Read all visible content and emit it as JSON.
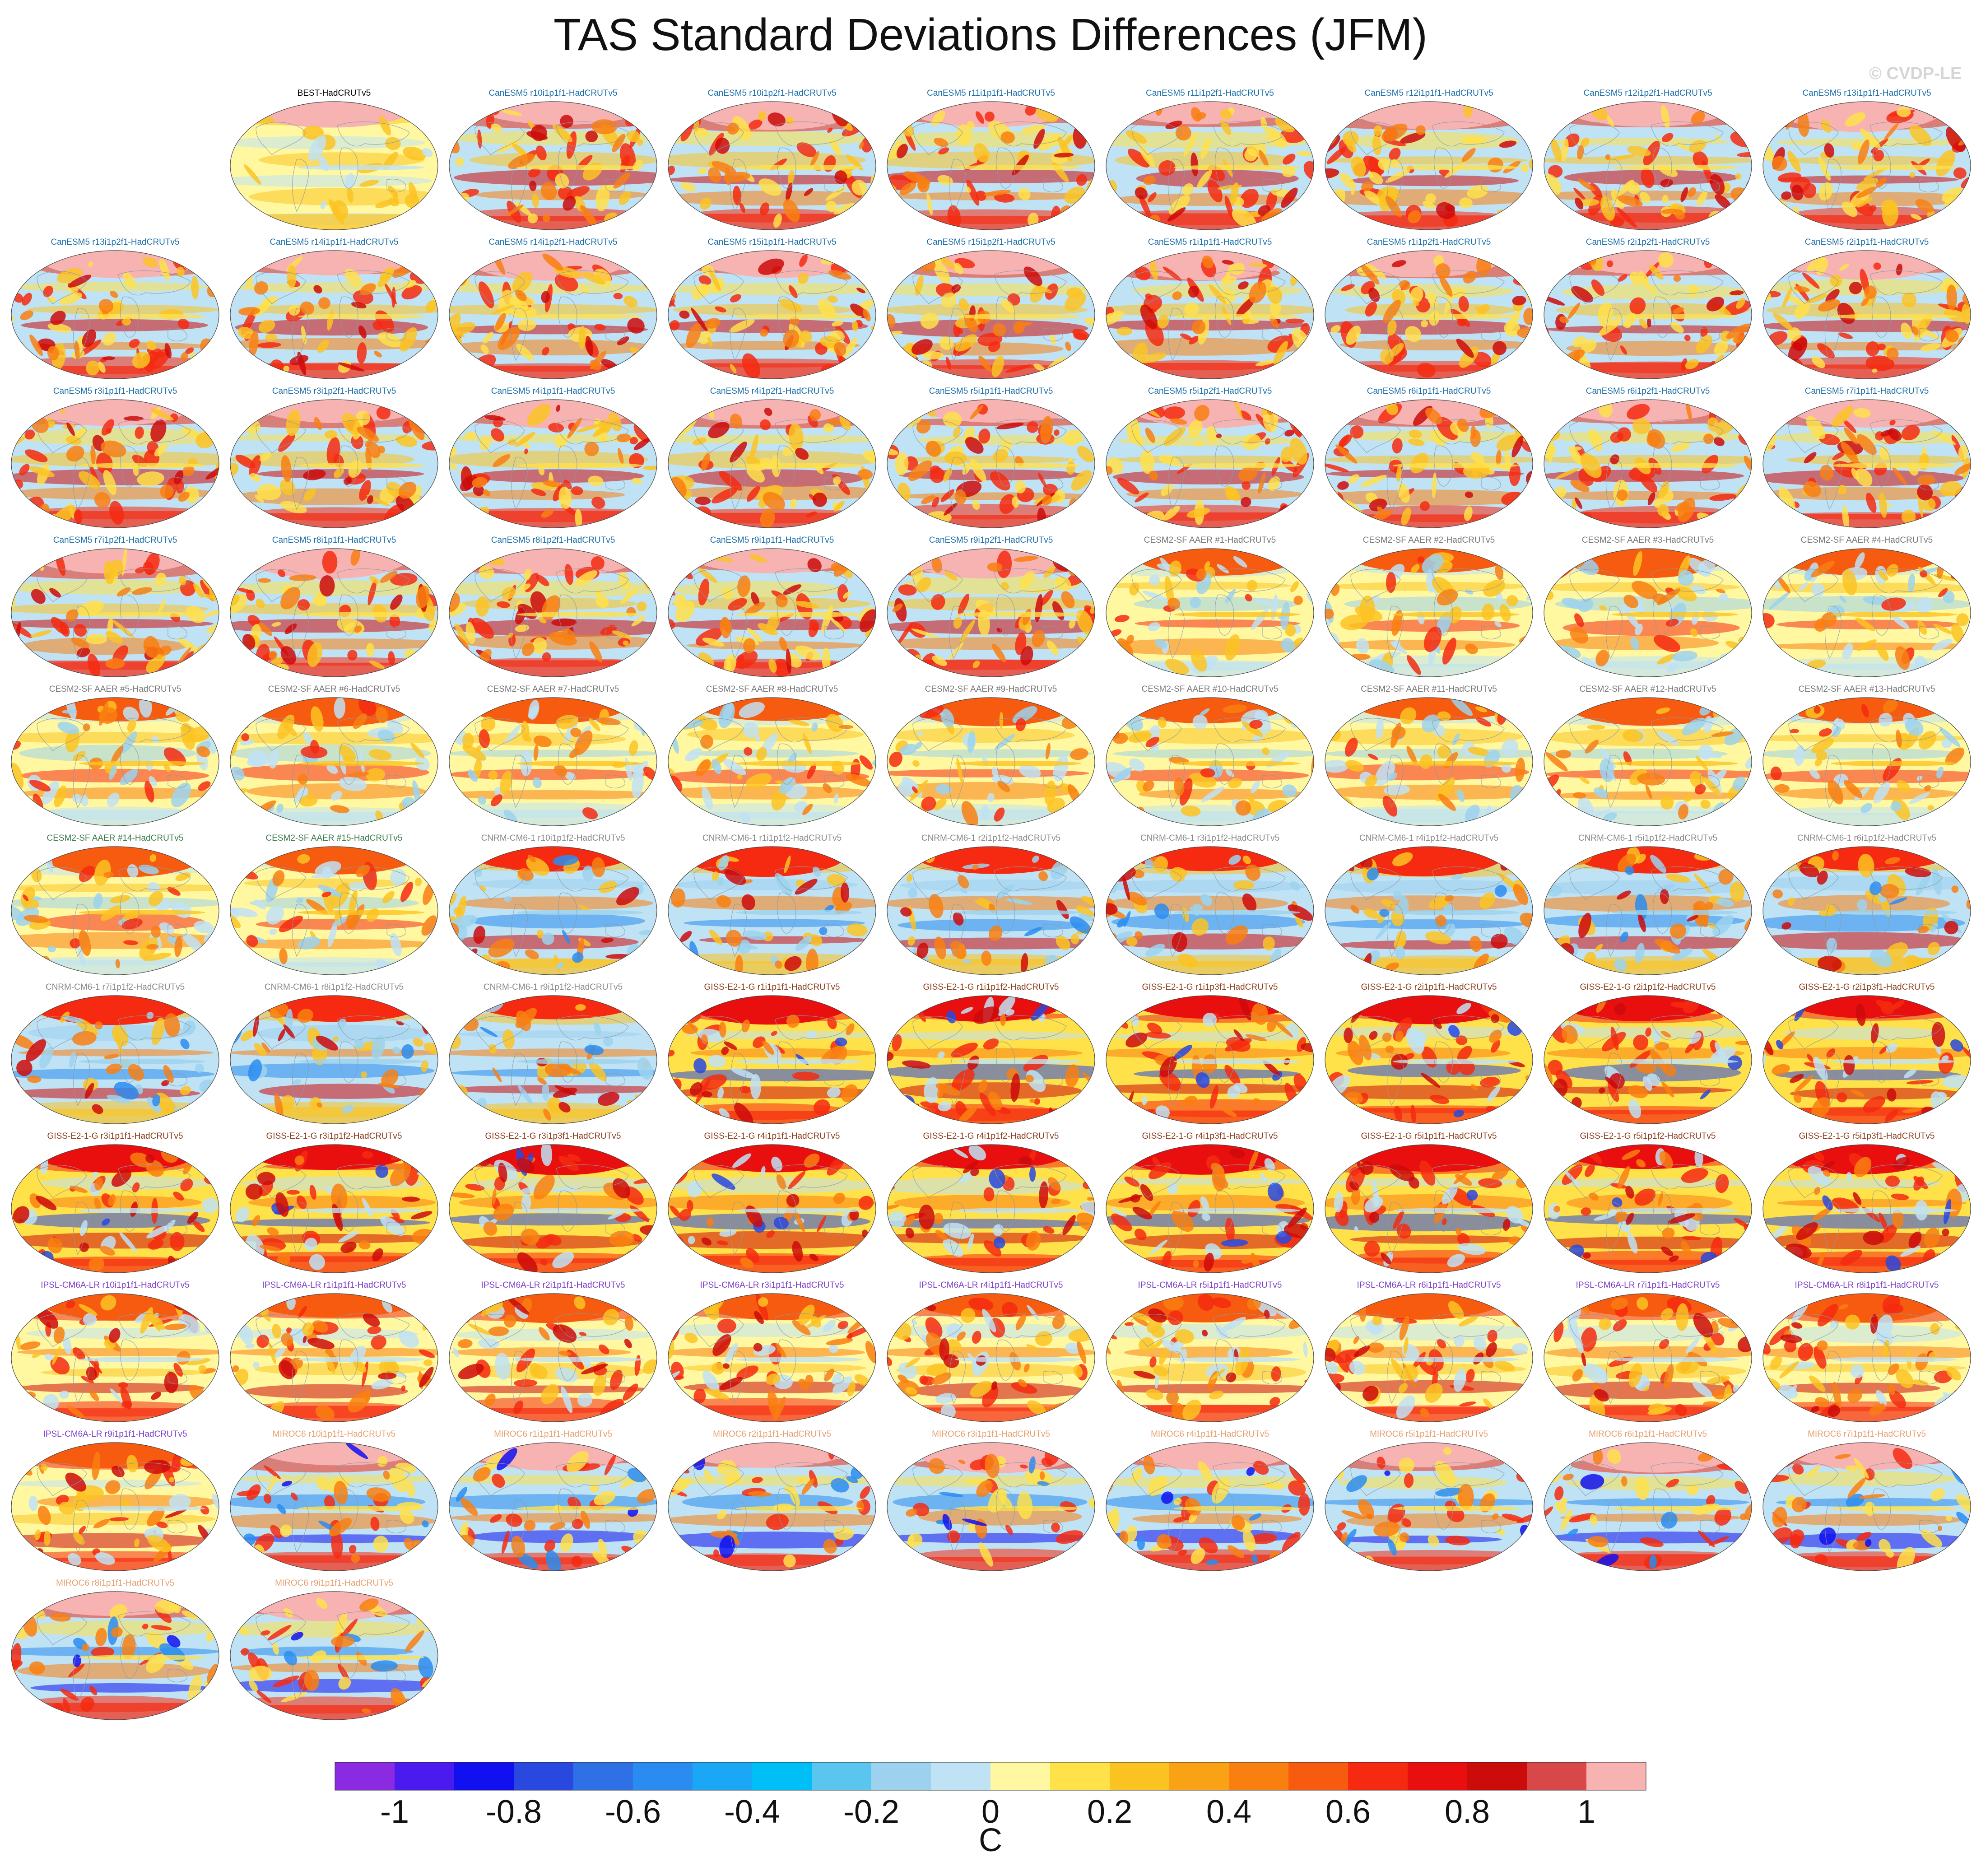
{
  "title": "TAS Standard Deviations Differences (JFM)",
  "copyright": "© CVDP-LE",
  "colorbar": {
    "unit": "C",
    "tick_labels": [
      "-1",
      "-0.8",
      "-0.6",
      "-0.4",
      "-0.2",
      "0",
      "0.2",
      "0.4",
      "0.6",
      "0.8",
      "1"
    ],
    "tick_values": [
      -1,
      -0.8,
      -0.6,
      -0.4,
      -0.2,
      0,
      0.2,
      0.4,
      0.6,
      0.8,
      1
    ],
    "colors": [
      "#8a2be2",
      "#4a1aee",
      "#1010f0",
      "#2848e0",
      "#3070e6",
      "#2a8cf0",
      "#1aa8f6",
      "#00bff6",
      "#5ac6f0",
      "#9cd2ee",
      "#bfe2f4",
      "#fff8a0",
      "#ffe14a",
      "#fbc322",
      "#f9a215",
      "#f97f10",
      "#f65b10",
      "#f52a10",
      "#ea0f0f",
      "#cc0b0b",
      "#d84848",
      "#f7b2b2"
    ]
  },
  "chart_data": {
    "type": "heatmap",
    "title": "TAS Standard Deviations Differences (JFM)",
    "variable": "TAS standard deviation difference vs HadCRUTv5",
    "season": "JFM",
    "units": "C",
    "color_range": [
      -1.1,
      1.1
    ],
    "color_interval": 0.1,
    "panels": [
      {
        "label": "BEST-HadCRUTv5",
        "color": "#000000",
        "style": "obs"
      },
      {
        "label": "CanESM5 r10i1p1f1-HadCRUTv5",
        "color": "#1a6ea8",
        "style": "canesm"
      },
      {
        "label": "CanESM5 r10i1p2f1-HadCRUTv5",
        "color": "#1a6ea8",
        "style": "canesm"
      },
      {
        "label": "CanESM5 r11i1p1f1-HadCRUTv5",
        "color": "#1a6ea8",
        "style": "canesm"
      },
      {
        "label": "CanESM5 r11i1p2f1-HadCRUTv5",
        "color": "#1a6ea8",
        "style": "canesm"
      },
      {
        "label": "CanESM5 r12i1p1f1-HadCRUTv5",
        "color": "#1a6ea8",
        "style": "canesm"
      },
      {
        "label": "CanESM5 r12i1p2f1-HadCRUTv5",
        "color": "#1a6ea8",
        "style": "canesm"
      },
      {
        "label": "CanESM5 r13i1p1f1-HadCRUTv5",
        "color": "#1a6ea8",
        "style": "canesm"
      },
      {
        "label": "CanESM5 r13i1p2f1-HadCRUTv5",
        "color": "#1a6ea8",
        "style": "canesm"
      },
      {
        "label": "CanESM5 r14i1p1f1-HadCRUTv5",
        "color": "#1a6ea8",
        "style": "canesm"
      },
      {
        "label": "CanESM5 r14i1p2f1-HadCRUTv5",
        "color": "#1a6ea8",
        "style": "canesm"
      },
      {
        "label": "CanESM5 r15i1p1f1-HadCRUTv5",
        "color": "#1a6ea8",
        "style": "canesm"
      },
      {
        "label": "CanESM5 r15i1p2f1-HadCRUTv5",
        "color": "#1a6ea8",
        "style": "canesm"
      },
      {
        "label": "CanESM5 r1i1p1f1-HadCRUTv5",
        "color": "#1a6ea8",
        "style": "canesm"
      },
      {
        "label": "CanESM5 r1i1p2f1-HadCRUTv5",
        "color": "#1a6ea8",
        "style": "canesm"
      },
      {
        "label": "CanESM5 r2i1p2f1-HadCRUTv5",
        "color": "#1a6ea8",
        "style": "canesm"
      },
      {
        "label": "CanESM5 r2i1p1f1-HadCRUTv5",
        "color": "#1a6ea8",
        "style": "canesm"
      },
      {
        "label": "CanESM5 r3i1p1f1-HadCRUTv5",
        "color": "#1a6ea8",
        "style": "canesm"
      },
      {
        "label": "CanESM5 r3i1p2f1-HadCRUTv5",
        "color": "#1a6ea8",
        "style": "canesm"
      },
      {
        "label": "CanESM5 r4i1p1f1-HadCRUTv5",
        "color": "#1a6ea8",
        "style": "canesm"
      },
      {
        "label": "CanESM5 r4i1p2f1-HadCRUTv5",
        "color": "#1a6ea8",
        "style": "canesm"
      },
      {
        "label": "CanESM5 r5i1p1f1-HadCRUTv5",
        "color": "#1a6ea8",
        "style": "canesm"
      },
      {
        "label": "CanESM5 r5i1p2f1-HadCRUTv5",
        "color": "#1a6ea8",
        "style": "canesm"
      },
      {
        "label": "CanESM5 r6i1p1f1-HadCRUTv5",
        "color": "#1a6ea8",
        "style": "canesm"
      },
      {
        "label": "CanESM5 r6i1p2f1-HadCRUTv5",
        "color": "#1a6ea8",
        "style": "canesm"
      },
      {
        "label": "CanESM5 r7i1p1f1-HadCRUTv5",
        "color": "#1a6ea8",
        "style": "canesm"
      },
      {
        "label": "CanESM5 r7i1p2f1-HadCRUTv5",
        "color": "#1a6ea8",
        "style": "canesm"
      },
      {
        "label": "CanESM5 r8i1p1f1-HadCRUTv5",
        "color": "#1a6ea8",
        "style": "canesm"
      },
      {
        "label": "CanESM5 r8i1p2f1-HadCRUTv5",
        "color": "#1a6ea8",
        "style": "canesm"
      },
      {
        "label": "CanESM5 r9i1p1f1-HadCRUTv5",
        "color": "#1a6ea8",
        "style": "canesm"
      },
      {
        "label": "CanESM5 r9i1p2f1-HadCRUTv5",
        "color": "#1a6ea8",
        "style": "canesm"
      },
      {
        "label": "CESM2-SF AAER #1-HadCRUTv5",
        "color": "#777777",
        "style": "cesm"
      },
      {
        "label": "CESM2-SF AAER #2-HadCRUTv5",
        "color": "#777777",
        "style": "cesm"
      },
      {
        "label": "CESM2-SF AAER #3-HadCRUTv5",
        "color": "#777777",
        "style": "cesm"
      },
      {
        "label": "CESM2-SF AAER #4-HadCRUTv5",
        "color": "#777777",
        "style": "cesm"
      },
      {
        "label": "CESM2-SF AAER #5-HadCRUTv5",
        "color": "#777777",
        "style": "cesm"
      },
      {
        "label": "CESM2-SF AAER #6-HadCRUTv5",
        "color": "#777777",
        "style": "cesm"
      },
      {
        "label": "CESM2-SF AAER #7-HadCRUTv5",
        "color": "#777777",
        "style": "cesm"
      },
      {
        "label": "CESM2-SF AAER #8-HadCRUTv5",
        "color": "#777777",
        "style": "cesm"
      },
      {
        "label": "CESM2-SF AAER #9-HadCRUTv5",
        "color": "#777777",
        "style": "cesm"
      },
      {
        "label": "CESM2-SF AAER #10-HadCRUTv5",
        "color": "#777777",
        "style": "cesm"
      },
      {
        "label": "CESM2-SF AAER #11-HadCRUTv5",
        "color": "#777777",
        "style": "cesm"
      },
      {
        "label": "CESM2-SF AAER #12-HadCRUTv5",
        "color": "#777777",
        "style": "cesm"
      },
      {
        "label": "CESM2-SF AAER #13-HadCRUTv5",
        "color": "#777777",
        "style": "cesm"
      },
      {
        "label": "CESM2-SF AAER #14-HadCRUTv5",
        "color": "#3a7a4a",
        "style": "cesm"
      },
      {
        "label": "CESM2-SF AAER #15-HadCRUTv5",
        "color": "#3a7a4a",
        "style": "cesm"
      },
      {
        "label": "CNRM-CM6-1 r10i1p1f2-HadCRUTv5",
        "color": "#888888",
        "style": "cnrm"
      },
      {
        "label": "CNRM-CM6-1 r1i1p1f2-HadCRUTv5",
        "color": "#888888",
        "style": "cnrm"
      },
      {
        "label": "CNRM-CM6-1 r2i1p1f2-HadCRUTv5",
        "color": "#888888",
        "style": "cnrm"
      },
      {
        "label": "CNRM-CM6-1 r3i1p1f2-HadCRUTv5",
        "color": "#888888",
        "style": "cnrm"
      },
      {
        "label": "CNRM-CM6-1 r4i1p1f2-HadCRUTv5",
        "color": "#888888",
        "style": "cnrm"
      },
      {
        "label": "CNRM-CM6-1 r5i1p1f2-HadCRUTv5",
        "color": "#888888",
        "style": "cnrm"
      },
      {
        "label": "CNRM-CM6-1 r6i1p1f2-HadCRUTv5",
        "color": "#888888",
        "style": "cnrm"
      },
      {
        "label": "CNRM-CM6-1 r7i1p1f2-HadCRUTv5",
        "color": "#888888",
        "style": "cnrm"
      },
      {
        "label": "CNRM-CM6-1 r8i1p1f2-HadCRUTv5",
        "color": "#888888",
        "style": "cnrm"
      },
      {
        "label": "CNRM-CM6-1 r9i1p1f2-HadCRUTv5",
        "color": "#888888",
        "style": "cnrm"
      },
      {
        "label": "GISS-E2-1-G r1i1p1f1-HadCRUTv5",
        "color": "#8b3a1a",
        "style": "giss"
      },
      {
        "label": "GISS-E2-1-G r1i1p1f2-HadCRUTv5",
        "color": "#8b3a1a",
        "style": "giss"
      },
      {
        "label": "GISS-E2-1-G r1i1p3f1-HadCRUTv5",
        "color": "#8b3a1a",
        "style": "giss"
      },
      {
        "label": "GISS-E2-1-G r2i1p1f1-HadCRUTv5",
        "color": "#8b3a1a",
        "style": "giss"
      },
      {
        "label": "GISS-E2-1-G r2i1p1f2-HadCRUTv5",
        "color": "#8b3a1a",
        "style": "giss"
      },
      {
        "label": "GISS-E2-1-G r2i1p3f1-HadCRUTv5",
        "color": "#8b3a1a",
        "style": "giss"
      },
      {
        "label": "GISS-E2-1-G r3i1p1f1-HadCRUTv5",
        "color": "#8b3a1a",
        "style": "giss"
      },
      {
        "label": "GISS-E2-1-G r3i1p1f2-HadCRUTv5",
        "color": "#8b3a1a",
        "style": "giss"
      },
      {
        "label": "GISS-E2-1-G r3i1p3f1-HadCRUTv5",
        "color": "#8b3a1a",
        "style": "giss"
      },
      {
        "label": "GISS-E2-1-G r4i1p1f1-HadCRUTv5",
        "color": "#8b3a1a",
        "style": "giss"
      },
      {
        "label": "GISS-E2-1-G r4i1p1f2-HadCRUTv5",
        "color": "#8b3a1a",
        "style": "giss"
      },
      {
        "label": "GISS-E2-1-G r4i1p3f1-HadCRUTv5",
        "color": "#8b3a1a",
        "style": "giss"
      },
      {
        "label": "GISS-E2-1-G r5i1p1f1-HadCRUTv5",
        "color": "#8b3a1a",
        "style": "giss"
      },
      {
        "label": "GISS-E2-1-G r5i1p1f2-HadCRUTv5",
        "color": "#8b3a1a",
        "style": "giss"
      },
      {
        "label": "GISS-E2-1-G r5i1p3f1-HadCRUTv5",
        "color": "#8b3a1a",
        "style": "giss"
      },
      {
        "label": "IPSL-CM6A-LR r10i1p1f1-HadCRUTv5",
        "color": "#7b3fc8",
        "style": "ipsl"
      },
      {
        "label": "IPSL-CM6A-LR r1i1p1f1-HadCRUTv5",
        "color": "#7b3fc8",
        "style": "ipsl"
      },
      {
        "label": "IPSL-CM6A-LR r2i1p1f1-HadCRUTv5",
        "color": "#7b3fc8",
        "style": "ipsl"
      },
      {
        "label": "IPSL-CM6A-LR r3i1p1f1-HadCRUTv5",
        "color": "#7b3fc8",
        "style": "ipsl"
      },
      {
        "label": "IPSL-CM6A-LR r4i1p1f1-HadCRUTv5",
        "color": "#7b3fc8",
        "style": "ipsl"
      },
      {
        "label": "IPSL-CM6A-LR r5i1p1f1-HadCRUTv5",
        "color": "#7b3fc8",
        "style": "ipsl"
      },
      {
        "label": "IPSL-CM6A-LR r6i1p1f1-HadCRUTv5",
        "color": "#7b3fc8",
        "style": "ipsl"
      },
      {
        "label": "IPSL-CM6A-LR r7i1p1f1-HadCRUTv5",
        "color": "#7b3fc8",
        "style": "ipsl"
      },
      {
        "label": "IPSL-CM6A-LR r8i1p1f1-HadCRUTv5",
        "color": "#7b3fc8",
        "style": "ipsl"
      },
      {
        "label": "IPSL-CM6A-LR r9i1p1f1-HadCRUTv5",
        "color": "#7b3fc8",
        "style": "ipsl"
      },
      {
        "label": "MIROC6 r10i1p1f1-HadCRUTv5",
        "color": "#e6a070",
        "style": "miroc"
      },
      {
        "label": "MIROC6 r1i1p1f1-HadCRUTv5",
        "color": "#e6a070",
        "style": "miroc"
      },
      {
        "label": "MIROC6 r2i1p1f1-HadCRUTv5",
        "color": "#e6a070",
        "style": "miroc"
      },
      {
        "label": "MIROC6 r3i1p1f1-HadCRUTv5",
        "color": "#e6a070",
        "style": "miroc"
      },
      {
        "label": "MIROC6 r4i1p1f1-HadCRUTv5",
        "color": "#e6a070",
        "style": "miroc"
      },
      {
        "label": "MIROC6 r5i1p1f1-HadCRUTv5",
        "color": "#e6a070",
        "style": "miroc"
      },
      {
        "label": "MIROC6 r6i1p1f1-HadCRUTv5",
        "color": "#e6a070",
        "style": "miroc"
      },
      {
        "label": "MIROC6 r7i1p1f1-HadCRUTv5",
        "color": "#e6a070",
        "style": "miroc"
      },
      {
        "label": "MIROC6 r8i1p1f1-HadCRUTv5",
        "color": "#e6a070",
        "style": "miroc"
      },
      {
        "label": "MIROC6 r9i1p1f1-HadCRUTv5",
        "color": "#e6a070",
        "style": "miroc"
      }
    ]
  }
}
